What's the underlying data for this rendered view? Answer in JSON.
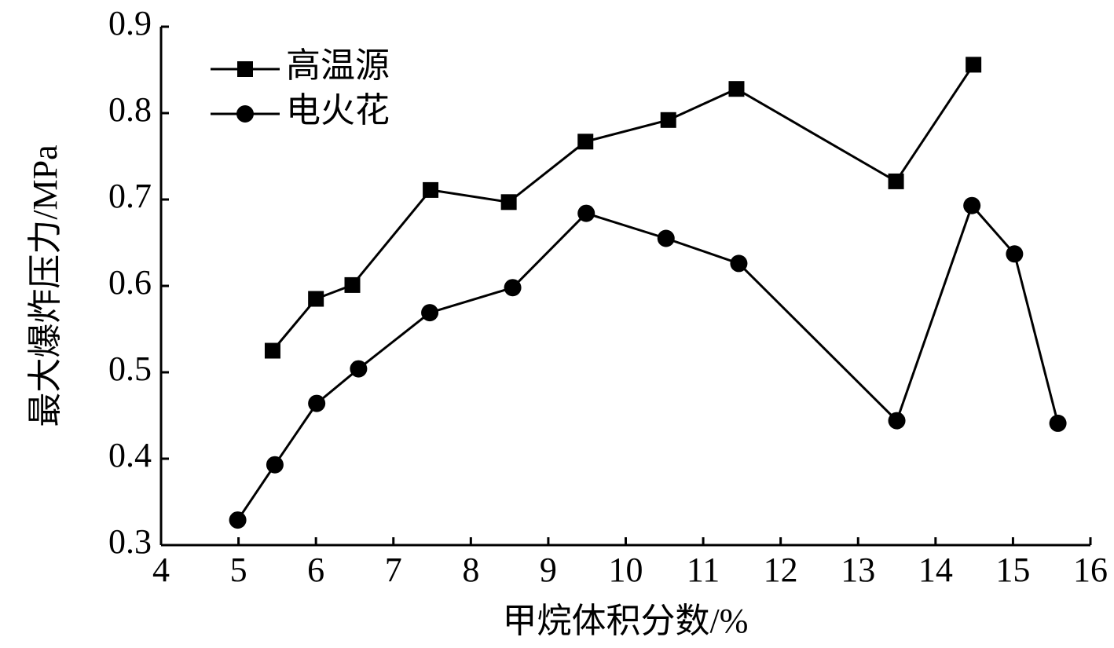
{
  "chart_data": {
    "type": "line",
    "x_label": "甲烷体积分数/%",
    "y_label": "最大爆炸压力/MPa",
    "xlim": [
      4,
      16
    ],
    "xticks": [
      4,
      5,
      6,
      7,
      8,
      9,
      10,
      11,
      12,
      13,
      14,
      15,
      16
    ],
    "ylim": [
      0.3,
      0.9
    ],
    "yticks": [
      0.3,
      0.4,
      0.5,
      0.6,
      0.7,
      0.8,
      0.9
    ],
    "grid": false,
    "legend": "upper left",
    "series": [
      {
        "name": "高温源",
        "color": "#000000",
        "marker": "square",
        "x": [
          5.44,
          6.0,
          6.47,
          7.48,
          8.49,
          9.48,
          10.55,
          11.43,
          13.49,
          14.49
        ],
        "values": [
          0.525,
          0.585,
          0.601,
          0.711,
          0.697,
          0.767,
          0.792,
          0.828,
          0.721,
          0.856
        ]
      },
      {
        "name": "电火花",
        "color": "#000000",
        "marker": "circle",
        "x": [
          4.99,
          5.47,
          6.01,
          6.55,
          7.47,
          8.54,
          9.49,
          10.52,
          11.46,
          13.5,
          14.47,
          15.02,
          15.58
        ],
        "values": [
          0.329,
          0.393,
          0.464,
          0.504,
          0.569,
          0.598,
          0.684,
          0.655,
          0.626,
          0.444,
          0.693,
          0.637,
          0.441
        ]
      }
    ]
  }
}
